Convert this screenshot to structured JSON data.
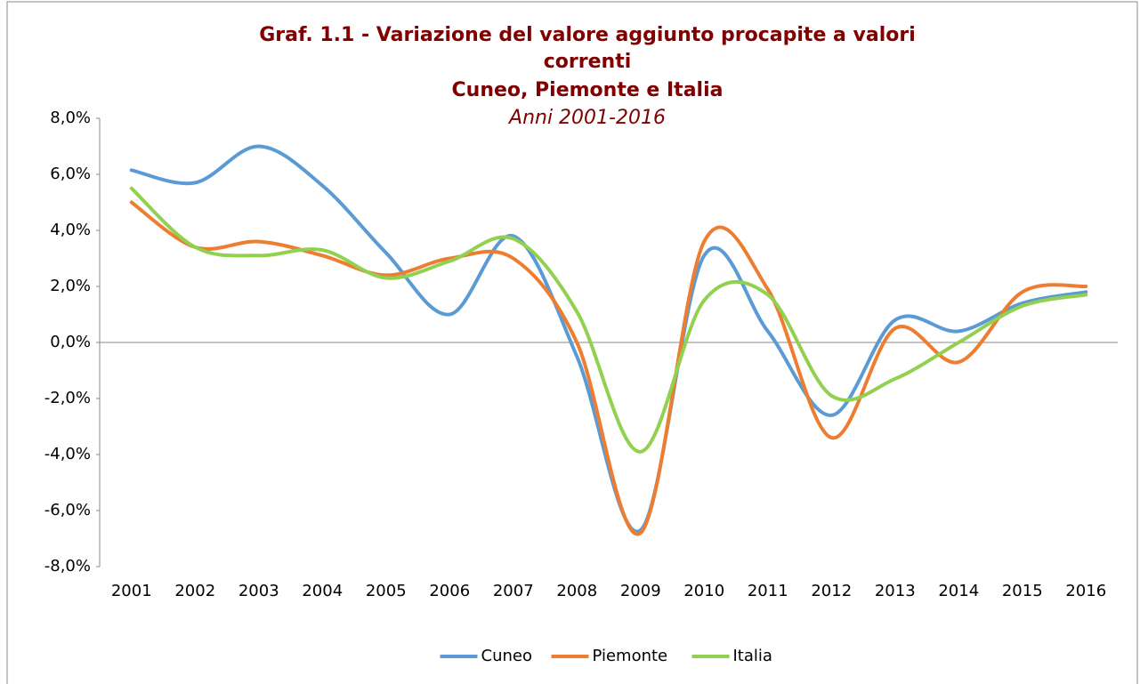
{
  "chart_data": {
    "type": "line",
    "title": [
      "Graf.  1.1 - Variazione del valore aggiunto procapite a  valori",
      "correnti",
      "Cuneo, Piemonte e Italia"
    ],
    "subtitle": "Anni 2001-2016",
    "categories": [
      "2001",
      "2002",
      "2003",
      "2004",
      "2005",
      "2006",
      "2007",
      "2008",
      "2009",
      "2010",
      "2011",
      "2012",
      "2013",
      "2014",
      "2015",
      "2016"
    ],
    "series": [
      {
        "name": "Cuneo",
        "color": "#5b9bd5",
        "values": [
          6.15,
          5.7,
          7.0,
          5.6,
          3.2,
          1.0,
          3.8,
          -0.5,
          -6.7,
          3.1,
          0.4,
          -2.6,
          0.8,
          0.4,
          1.4,
          1.8
        ]
      },
      {
        "name": "Piemonte",
        "color": "#ed7d31",
        "values": [
          5.0,
          3.4,
          3.6,
          3.1,
          2.4,
          3.0,
          3.0,
          0.0,
          -6.8,
          3.6,
          1.9,
          -3.4,
          0.5,
          -0.7,
          1.8,
          2.0
        ]
      },
      {
        "name": "Italia",
        "color": "#92d050",
        "values": [
          5.5,
          3.4,
          3.1,
          3.3,
          2.3,
          2.9,
          3.7,
          1.1,
          -3.9,
          1.5,
          1.7,
          -1.9,
          -1.3,
          0.0,
          1.3,
          1.7
        ]
      }
    ],
    "ylim": [
      -8,
      8
    ],
    "yticks": [
      {
        "value": -8,
        "label": "-8,0%"
      },
      {
        "value": -6,
        "label": "-6,0%"
      },
      {
        "value": -4,
        "label": "-4,0%"
      },
      {
        "value": -2,
        "label": "-2,0%"
      },
      {
        "value": 0,
        "label": "0,0%"
      },
      {
        "value": 2,
        "label": "2,0%"
      },
      {
        "value": 4,
        "label": "4,0%"
      },
      {
        "value": 6,
        "label": "6,0%"
      },
      {
        "value": 8,
        "label": "8,0%"
      }
    ],
    "grid": false,
    "smooth": true,
    "legend": "bottom"
  }
}
